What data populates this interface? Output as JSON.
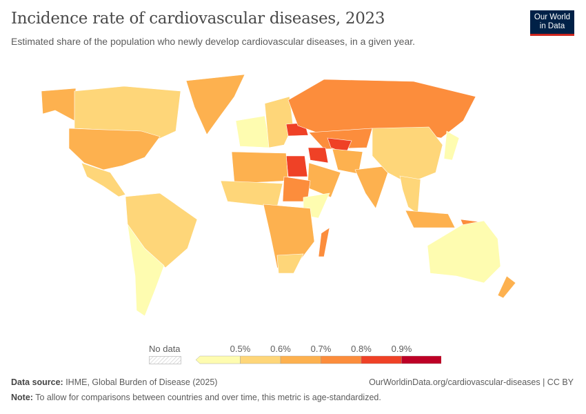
{
  "header": {
    "title": "Incidence rate of cardiovascular diseases, 2023",
    "subtitle": "Estimated share of the population who newly develop cardiovascular diseases, in a given year.",
    "logo_text": "Our World in Data"
  },
  "legend": {
    "no_data_label": "No data",
    "ticks": [
      "0.5%",
      "0.6%",
      "0.7%",
      "0.8%",
      "0.9%"
    ],
    "bins": [
      {
        "range": "<0.5%",
        "color": "#fefcb0"
      },
      {
        "range": "0.5–0.6%",
        "color": "#fed679"
      },
      {
        "range": "0.6–0.7%",
        "color": "#fdb14f"
      },
      {
        "range": "0.7–0.8%",
        "color": "#fc8d3c"
      },
      {
        "range": "0.8–0.9%",
        "color": "#ef4126"
      },
      {
        "range": ">0.9%",
        "color": "#bd0026"
      }
    ]
  },
  "map": {
    "type": "choropleth",
    "projection": "world",
    "regions": [
      {
        "name": "Alaska (USA)",
        "bin": 2
      },
      {
        "name": "Canada",
        "bin": 1
      },
      {
        "name": "Greenland",
        "bin": 2
      },
      {
        "name": "United States",
        "bin": 2
      },
      {
        "name": "Mexico & Central America",
        "bin": 1
      },
      {
        "name": "Brazil & northern South America",
        "bin": 1
      },
      {
        "name": "Andes & Southern Cone",
        "bin": 0
      },
      {
        "name": "Western Europe",
        "bin": 0
      },
      {
        "name": "Eastern Europe",
        "bin": 1
      },
      {
        "name": "Ukraine",
        "bin": 4
      },
      {
        "name": "Russia",
        "bin": 3
      },
      {
        "name": "Kazakhstan",
        "bin": 3
      },
      {
        "name": "Turkmenistan",
        "bin": 4
      },
      {
        "name": "Iran",
        "bin": 2
      },
      {
        "name": "Iraq & Syria",
        "bin": 4
      },
      {
        "name": "Saudi Arabia",
        "bin": 2
      },
      {
        "name": "Egypt",
        "bin": 4
      },
      {
        "name": "North Africa",
        "bin": 2
      },
      {
        "name": "West Africa",
        "bin": 1
      },
      {
        "name": "Sudan",
        "bin": 3
      },
      {
        "name": "Horn of Africa",
        "bin": 0
      },
      {
        "name": "Central & Southern Africa",
        "bin": 2
      },
      {
        "name": "South Africa",
        "bin": 1
      },
      {
        "name": "Madagascar",
        "bin": 3
      },
      {
        "name": "India",
        "bin": 2
      },
      {
        "name": "China & Mongolia",
        "bin": 1
      },
      {
        "name": "Southeast Asia",
        "bin": 1
      },
      {
        "name": "Japan",
        "bin": 0
      },
      {
        "name": "Indonesia",
        "bin": 2
      },
      {
        "name": "Papua New Guinea",
        "bin": 3
      },
      {
        "name": "Australia",
        "bin": 0
      },
      {
        "name": "New Zealand",
        "bin": 2
      }
    ]
  },
  "footer": {
    "source_label": "Data source:",
    "source_text": " IHME, Global Burden of Disease (2025)",
    "url_text": "OurWorldinData.org/cardiovascular-diseases | CC BY",
    "note_label": "Note:",
    "note_text": " To allow for comparisons between countries and over time, this metric is age-standardized."
  }
}
